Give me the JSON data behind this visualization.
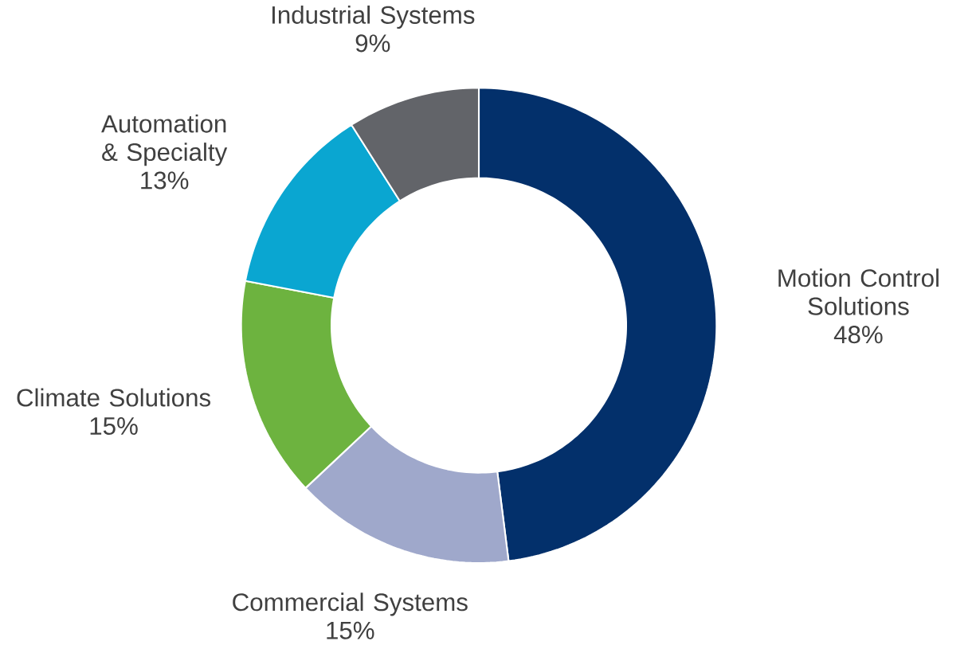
{
  "chart_data": {
    "type": "donut",
    "categories": [
      "Motion Control Solutions",
      "Commercial Systems",
      "Climate Solutions",
      "Automation & Specialty",
      "Industrial Systems"
    ],
    "values": [
      48,
      15,
      15,
      13,
      9
    ],
    "colors": [
      "#03306b",
      "#9fa8cb",
      "#6db33f",
      "#0aa6d1",
      "#626469"
    ],
    "value_labels": [
      "48%",
      "15%",
      "15%",
      "13%",
      "9%"
    ]
  }
}
